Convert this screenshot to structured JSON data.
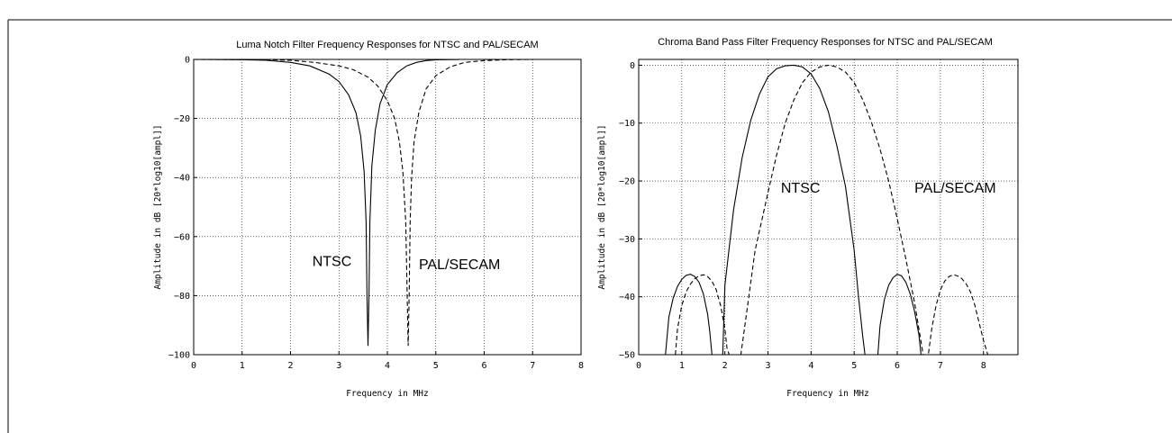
{
  "chart_data": [
    {
      "type": "line",
      "title": "Luma Notch Filter Frequency Responses for NTSC and PAL/SECAM",
      "xlabel": "Frequency in MHz",
      "ylabel": "Amplitude in dB [20*log10[ampl]]",
      "xlim": [
        0,
        8
      ],
      "ylim": [
        -100,
        0
      ],
      "xticks": [
        0,
        1,
        2,
        3,
        4,
        5,
        6,
        7,
        8
      ],
      "yticks": [
        0,
        -20,
        -40,
        -60,
        -80,
        -100
      ],
      "xtick_labels": [
        "0",
        "1",
        "2",
        "3",
        "4",
        "5",
        "6",
        "7",
        "8"
      ],
      "ytick_labels": [
        "0",
        "−20",
        "−40",
        "−60",
        "−80",
        "−100"
      ],
      "grid": true,
      "annotations": [
        {
          "text": "NTSC",
          "x": 2.45,
          "y": -70
        },
        {
          "text": "PAL/SECAM",
          "x": 4.65,
          "y": -71
        }
      ],
      "series": [
        {
          "style": "solid",
          "x": [
            0,
            1,
            1.5,
            2,
            2.4,
            2.8,
            3.0,
            3.2,
            3.35,
            3.45,
            3.52,
            3.56,
            3.58,
            3.6,
            3.62,
            3.64,
            3.68,
            3.75,
            3.85,
            4.0,
            4.2,
            4.4,
            4.6,
            4.8,
            5.0,
            5.5,
            6.0,
            7.0,
            8.0
          ],
          "y": [
            0,
            -0.1,
            -0.3,
            -1,
            -2.2,
            -5,
            -7.5,
            -12,
            -18,
            -26,
            -38,
            -55,
            -80,
            -97,
            -80,
            -55,
            -36,
            -24,
            -15,
            -8.5,
            -4.5,
            -2.2,
            -1,
            -0.4,
            -0.15,
            0,
            0,
            0,
            0
          ]
        },
        {
          "style": "dashed",
          "x": [
            0,
            1.5,
            2.0,
            2.5,
            3.0,
            3.3,
            3.6,
            3.8,
            4.0,
            4.15,
            4.25,
            4.32,
            4.38,
            4.41,
            4.43,
            4.45,
            4.47,
            4.5,
            4.55,
            4.65,
            4.8,
            5.0,
            5.3,
            5.6,
            6.0,
            6.5,
            7.0,
            8.0
          ],
          "y": [
            0,
            -0.1,
            -0.3,
            -1,
            -2.2,
            -3.5,
            -6,
            -9,
            -14,
            -20,
            -28,
            -38,
            -55,
            -80,
            -97,
            -80,
            -55,
            -40,
            -28,
            -18,
            -10,
            -5.5,
            -2.5,
            -1,
            -0.4,
            -0.1,
            0,
            0
          ]
        }
      ]
    },
    {
      "type": "line",
      "title": "Chroma Band Pass Filter Frequency Responses for NTSC and PAL/SECAM",
      "xlabel": "Frequency in MHz",
      "ylabel": "Amplitude in dB [20*log10[ampl]]",
      "xlim": [
        0,
        8.8
      ],
      "ylim": [
        -50,
        1
      ],
      "xticks": [
        0,
        1,
        2,
        3,
        4,
        5,
        6,
        7,
        8
      ],
      "yticks": [
        0,
        -10,
        -20,
        -30,
        -40,
        -50
      ],
      "xtick_labels": [
        "0",
        "1",
        "2",
        "3",
        "4",
        "5",
        "6",
        "7",
        "8"
      ],
      "ytick_labels": [
        "0",
        "−10",
        "−20",
        "−30",
        "−40",
        "−50"
      ],
      "grid": true,
      "annotations": [
        {
          "text": "NTSC",
          "x": 3.3,
          "y": -22
        },
        {
          "text": "PAL/SECAM",
          "x": 6.4,
          "y": -22
        }
      ],
      "series": [
        {
          "style": "solid",
          "x": [
            0.62,
            0.7,
            0.8,
            0.9,
            1.0,
            1.1,
            1.2,
            1.3,
            1.4,
            1.5,
            1.6,
            1.65,
            1.7,
            1.8,
            1.9,
            1.95,
            2.0,
            2.2,
            2.4,
            2.6,
            2.8,
            3.0,
            3.2,
            3.4,
            3.6,
            3.8,
            4.0,
            4.2,
            4.4,
            4.6,
            4.8,
            5.0,
            5.1,
            5.2,
            5.25,
            5.3,
            5.4,
            5.5,
            5.55,
            5.6,
            5.7,
            5.8,
            5.9,
            6.0,
            6.1,
            6.2,
            6.3,
            6.4,
            6.5,
            6.55
          ],
          "y": [
            -50,
            -43.5,
            -40.2,
            -38.2,
            -37,
            -36.3,
            -36.1,
            -36.5,
            -37.5,
            -39.5,
            -43,
            -46,
            -50,
            -50,
            -50,
            -50,
            -38,
            -25,
            -16,
            -9.5,
            -5,
            -2,
            -0.6,
            -0.1,
            0,
            -0.3,
            -1.5,
            -4,
            -8,
            -14,
            -21,
            -32,
            -40,
            -47,
            -50,
            -50,
            -50,
            -50,
            -50,
            -45,
            -40.5,
            -38,
            -36.7,
            -36.1,
            -36.4,
            -37.5,
            -39.5,
            -42.5,
            -46.5,
            -50
          ]
        },
        {
          "style": "dashed",
          "x": [
            0.85,
            0.9,
            1.0,
            1.1,
            1.2,
            1.3,
            1.4,
            1.5,
            1.6,
            1.7,
            1.8,
            1.9,
            2.0,
            2.05,
            2.1,
            2.3,
            2.37,
            2.5,
            2.7,
            3.0,
            3.2,
            3.4,
            3.6,
            3.8,
            4.0,
            4.2,
            4.4,
            4.6,
            4.8,
            5.0,
            5.2,
            5.4,
            5.6,
            5.8,
            6.0,
            6.2,
            6.4,
            6.5,
            6.6,
            6.7,
            6.72,
            6.8,
            6.9,
            7.0,
            7.1,
            7.2,
            7.3,
            7.4,
            7.5,
            7.6,
            7.7,
            7.8,
            7.9,
            8.0,
            8.1
          ],
          "y": [
            -50,
            -45.5,
            -41.5,
            -39.2,
            -37.8,
            -36.9,
            -36.4,
            -36.2,
            -36.5,
            -37.3,
            -38.8,
            -41.5,
            -45.5,
            -49,
            -50,
            -50,
            -50,
            -43,
            -32,
            -22,
            -15.5,
            -10,
            -6,
            -3,
            -1.2,
            -0.3,
            0,
            -0.3,
            -1.2,
            -3,
            -6,
            -9.8,
            -14.5,
            -20,
            -26.5,
            -33.5,
            -41,
            -45.5,
            -50,
            -50,
            -50,
            -45.5,
            -41.5,
            -38.8,
            -37.3,
            -36.5,
            -36.2,
            -36.4,
            -36.9,
            -37.8,
            -39.2,
            -41.5,
            -44.5,
            -47.5,
            -50
          ]
        }
      ]
    }
  ]
}
